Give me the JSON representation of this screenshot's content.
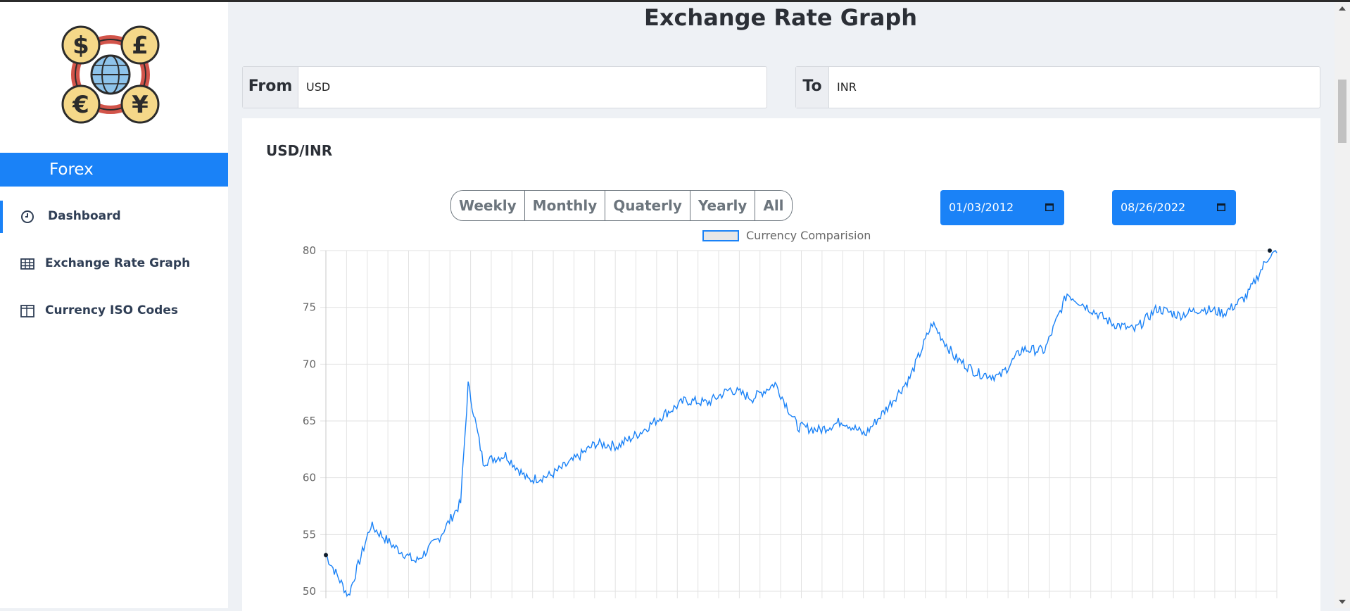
{
  "app": {
    "brand_label": "Forex",
    "page_title": "Exchange Rate Graph"
  },
  "sidebar": {
    "items": [
      {
        "label": "Dashboard",
        "icon": "clock-icon",
        "active": true
      },
      {
        "label": "Exchange Rate Graph",
        "icon": "table-icon",
        "active": false
      },
      {
        "label": "Currency ISO Codes",
        "icon": "columns-icon",
        "active": false
      }
    ]
  },
  "selectors": {
    "from_label": "From",
    "from_value": "USD",
    "to_label": "To",
    "to_value": "INR"
  },
  "chart_panel": {
    "pair_title": "USD/INR",
    "period_buttons": [
      "Weekly",
      "Monthly",
      "Quaterly",
      "Yearly",
      "All"
    ],
    "start_date": "01/03/2012",
    "end_date": "08/26/2022"
  },
  "colors": {
    "accent": "#1a82f7",
    "line": "#1a82f7"
  },
  "chart_data": {
    "type": "line",
    "legend": "Currency Comparision",
    "legend_position": "top-center",
    "ylim": [
      50,
      80
    ],
    "yticks": [
      50,
      55,
      60,
      65,
      70,
      75,
      80
    ],
    "grid": true,
    "x_start": "2012-01-03",
    "x_end": "2022-08-26",
    "series": [
      {
        "name": "Currency Comparision",
        "x": [
          "2012-01",
          "2012-04",
          "2012-07",
          "2012-10",
          "2013-01",
          "2013-04",
          "2013-07",
          "2013-08",
          "2013-10",
          "2014-01",
          "2014-04",
          "2014-07",
          "2014-10",
          "2015-01",
          "2015-04",
          "2015-07",
          "2015-10",
          "2016-01",
          "2016-04",
          "2016-07",
          "2016-10",
          "2017-01",
          "2017-04",
          "2017-07",
          "2017-10",
          "2018-01",
          "2018-04",
          "2018-07",
          "2018-10",
          "2019-01",
          "2019-04",
          "2019-07",
          "2019-10",
          "2020-01",
          "2020-04",
          "2020-07",
          "2020-10",
          "2021-01",
          "2021-04",
          "2021-07",
          "2021-10",
          "2022-01",
          "2022-04",
          "2022-07",
          "2022-08"
        ],
        "values": [
          53.2,
          49.6,
          55.8,
          54.0,
          52.6,
          54.6,
          57.8,
          68.2,
          61.4,
          62.0,
          59.8,
          60.2,
          61.5,
          63.0,
          62.8,
          64.0,
          65.5,
          66.8,
          66.6,
          67.8,
          67.0,
          68.3,
          64.5,
          64.2,
          65.0,
          63.8,
          66.2,
          68.8,
          73.6,
          70.6,
          69.2,
          68.9,
          71.3,
          71.2,
          76.2,
          74.9,
          73.6,
          73.0,
          74.9,
          74.3,
          74.9,
          74.5,
          76.0,
          79.6,
          79.8
        ]
      }
    ]
  }
}
